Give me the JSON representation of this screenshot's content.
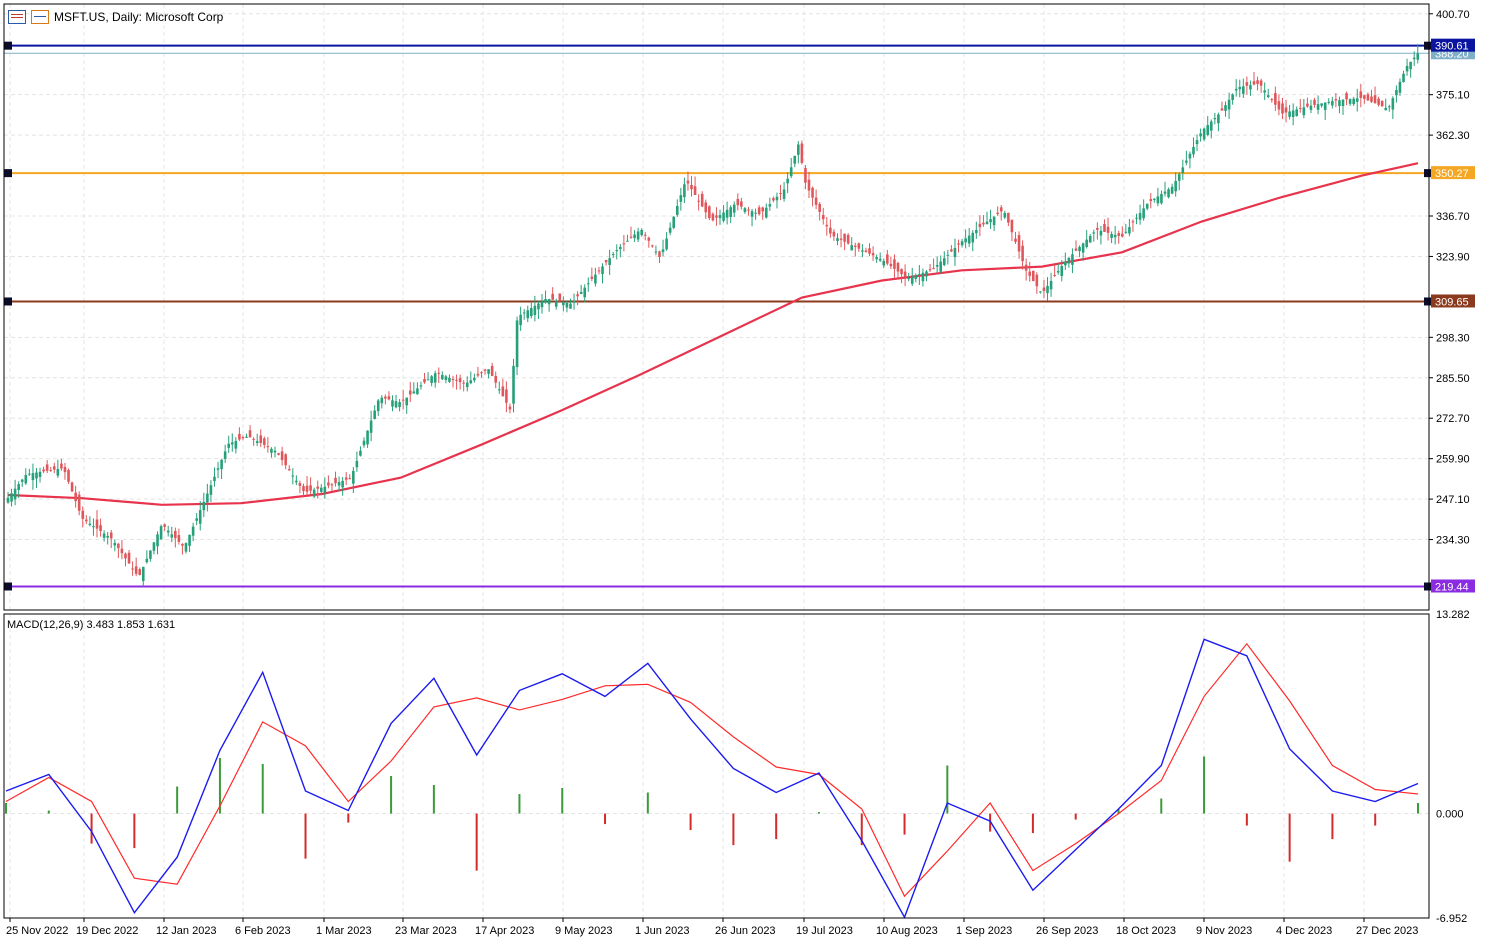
{
  "header": {
    "title": "MSFT.US, Daily:  Microsoft Corp"
  },
  "indicator": {
    "label": "MACD(12,26,9) 3.483 1.853 1.631"
  },
  "colors": {
    "bull": "#26a07a",
    "bear": "#e0575b",
    "ma": "#e8334d",
    "macd": "#1b1bf0",
    "signal": "#ff2a2a",
    "hist_pos": "#3a9b3a",
    "hist_neg": "#d42a2a",
    "axis_text": "#000000",
    "grid": "#e4e4e4"
  },
  "chart_data": [
    {
      "type": "candlestick",
      "symbol": "MSFT.US",
      "timeframe": "Daily",
      "y_ticks": [
        400.7,
        375.1,
        362.3,
        336.7,
        323.9,
        298.3,
        285.5,
        272.7,
        259.9,
        247.1,
        234.3
      ],
      "ylim": [
        212.0,
        403.8
      ],
      "x_labels": [
        "25 Nov 2022",
        "19 Dec 2022",
        "12 Jan 2023",
        "6 Feb 2023",
        "1 Mar 2023",
        "23 Mar 2023",
        "17 Apr 2023",
        "9 May 2023",
        "1 Jun 2023",
        "26 Jun 2023",
        "19 Jul 2023",
        "10 Aug 2023",
        "1 Sep 2023",
        "26 Sep 2023",
        "18 Oct 2023",
        "9 Nov 2023",
        "4 Dec 2023",
        "27 Dec 2023"
      ],
      "horizontal_levels": [
        {
          "value": 390.61,
          "label": "390.61",
          "color": "#0a14a0"
        },
        {
          "value": 350.27,
          "label": "350.27",
          "color": "#f5a623"
        },
        {
          "value": 309.65,
          "label": "309.65",
          "color": "#8b3a1e"
        },
        {
          "value": 219.44,
          "label": "219.44",
          "color": "#8b2be2"
        }
      ],
      "last_price": {
        "value": 388.2,
        "label": "388.20"
      },
      "close_path": [
        {
          "d": "25 Nov 2022",
          "c": 247.5
        },
        {
          "d": "1 Dec 2022",
          "c": 255.0
        },
        {
          "d": "13 Dec 2022",
          "c": 256.9
        },
        {
          "d": "19 Dec 2022",
          "c": 241.0
        },
        {
          "d": "28 Dec 2022",
          "c": 234.5
        },
        {
          "d": "5 Jan 2023",
          "c": 222.3
        },
        {
          "d": "12 Jan 2023",
          "c": 239.2
        },
        {
          "d": "19 Jan 2023",
          "c": 231.8
        },
        {
          "d": "26 Jan 2023",
          "c": 248.0
        },
        {
          "d": "2 Feb 2023",
          "c": 264.6
        },
        {
          "d": "8 Feb 2023",
          "c": 267.0
        },
        {
          "d": "16 Feb 2023",
          "c": 262.2
        },
        {
          "d": "24 Feb 2023",
          "c": 249.2
        },
        {
          "d": "2 Mar 2023",
          "c": 251.1
        },
        {
          "d": "9 Mar 2023",
          "c": 253.7
        },
        {
          "d": "17 Mar 2023",
          "c": 279.4
        },
        {
          "d": "23 Mar 2023",
          "c": 277.7
        },
        {
          "d": "3 Apr 2023",
          "c": 287.2
        },
        {
          "d": "12 Apr 2023",
          "c": 283.5
        },
        {
          "d": "19 Apr 2023",
          "c": 288.4
        },
        {
          "d": "25 Apr 2023",
          "c": 275.4
        },
        {
          "d": "27 Apr 2023",
          "c": 304.8
        },
        {
          "d": "5 May 2023",
          "c": 310.6
        },
        {
          "d": "12 May 2023",
          "c": 308.9
        },
        {
          "d": "19 May 2023",
          "c": 318.3
        },
        {
          "d": "25 May 2023",
          "c": 325.9
        },
        {
          "d": "1 Jun 2023",
          "c": 332.6
        },
        {
          "d": "7 Jun 2023",
          "c": 323.4
        },
        {
          "d": "15 Jun 2023",
          "c": 348.1
        },
        {
          "d": "23 Jun 2023",
          "c": 335.0
        },
        {
          "d": "30 Jun 2023",
          "c": 340.5
        },
        {
          "d": "7 Jul 2023",
          "c": 337.2
        },
        {
          "d": "14 Jul 2023",
          "c": 345.2
        },
        {
          "d": "18 Jul 2023",
          "c": 359.5
        },
        {
          "d": "20 Jul 2023",
          "c": 346.9
        },
        {
          "d": "27 Jul 2023",
          "c": 330.7
        },
        {
          "d": "3 Aug 2023",
          "c": 326.7
        },
        {
          "d": "10 Aug 2023",
          "c": 322.9
        },
        {
          "d": "17 Aug 2023",
          "c": 316.9
        },
        {
          "d": "24 Aug 2023",
          "c": 319.9
        },
        {
          "d": "1 Sep 2023",
          "c": 328.7
        },
        {
          "d": "8 Sep 2023",
          "c": 334.3
        },
        {
          "d": "14 Sep 2023",
          "c": 338.7
        },
        {
          "d": "21 Sep 2023",
          "c": 319.5
        },
        {
          "d": "26 Sep 2023",
          "c": 312.1
        },
        {
          "d": "2 Oct 2023",
          "c": 321.8
        },
        {
          "d": "11 Oct 2023",
          "c": 332.4
        },
        {
          "d": "18 Oct 2023",
          "c": 330.1
        },
        {
          "d": "25 Oct 2023",
          "c": 340.7
        },
        {
          "d": "1 Nov 2023",
          "c": 346.1
        },
        {
          "d": "9 Nov 2023",
          "c": 363.7
        },
        {
          "d": "15 Nov 2023",
          "c": 369.7
        },
        {
          "d": "20 Nov 2023",
          "c": 377.4
        },
        {
          "d": "27 Nov 2023",
          "c": 378.6
        },
        {
          "d": "4 Dec 2023",
          "c": 369.1
        },
        {
          "d": "11 Dec 2023",
          "c": 371.3
        },
        {
          "d": "19 Dec 2023",
          "c": 373.2
        },
        {
          "d": "27 Dec 2023",
          "c": 374.1
        },
        {
          "d": "3 Jan 2024",
          "c": 370.6
        },
        {
          "d": "8 Jan 2024",
          "c": 384.1
        },
        {
          "d": "11 Jan 2024",
          "c": 388.2
        }
      ],
      "moving_average": [
        {
          "d": "25 Nov 2022",
          "v": 248.4
        },
        {
          "d": "19 Dec 2022",
          "v": 247.4
        },
        {
          "d": "12 Jan 2023",
          "v": 245.3
        },
        {
          "d": "6 Feb 2023",
          "v": 245.8
        },
        {
          "d": "1 Mar 2023",
          "v": 248.7
        },
        {
          "d": "23 Mar 2023",
          "v": 253.9
        },
        {
          "d": "17 Apr 2023",
          "v": 264.3
        },
        {
          "d": "9 May 2023",
          "v": 275.1
        },
        {
          "d": "1 Jun 2023",
          "v": 286.6
        },
        {
          "d": "26 Jun 2023",
          "v": 298.7
        },
        {
          "d": "19 Jul 2023",
          "v": 310.9
        },
        {
          "d": "10 Aug 2023",
          "v": 316.3
        },
        {
          "d": "1 Sep 2023",
          "v": 319.5
        },
        {
          "d": "26 Sep 2023",
          "v": 320.7
        },
        {
          "d": "18 Oct 2023",
          "v": 325.2
        },
        {
          "d": "9 Nov 2023",
          "v": 335.0
        },
        {
          "d": "4 Dec 2023",
          "v": 342.7
        },
        {
          "d": "27 Dec 2023",
          "v": 349.5
        },
        {
          "d": "11 Jan 2024",
          "v": 353.4
        }
      ]
    },
    {
      "type": "line",
      "name": "MACD(12,26,9)",
      "y_ticks": [
        13.282,
        0.0,
        -6.952
      ],
      "ylim": [
        -6.952,
        13.282
      ],
      "x_labels_shared": true,
      "series": [
        {
          "name": "MACD",
          "values": [
            1.5,
            2.6,
            -1.2,
            -6.6,
            -2.9,
            4.2,
            9.4,
            1.5,
            0.2,
            6.0,
            9.0,
            3.9,
            8.2,
            9.3,
            7.8,
            10.0,
            6.3,
            3.0,
            1.4,
            2.7,
            -1.8,
            -6.9,
            0.7,
            -0.5,
            -5.1,
            -2.4,
            0.3,
            3.2,
            11.6,
            10.5,
            4.3,
            1.5,
            0.8,
            2.0
          ]
        },
        {
          "name": "Signal",
          "values": [
            0.8,
            2.4,
            0.8,
            -4.3,
            -4.7,
            0.5,
            6.1,
            4.5,
            0.8,
            3.5,
            7.1,
            7.7,
            6.9,
            7.6,
            8.5,
            8.6,
            7.4,
            5.1,
            3.1,
            2.6,
            0.3,
            -5.5,
            -2.5,
            0.7,
            -3.8,
            -2.0,
            0.0,
            2.2,
            7.8,
            11.3,
            7.5,
            3.2,
            1.6,
            1.3
          ]
        },
        {
          "name": "Histogram",
          "values": [
            0.7,
            0.2,
            -2.0,
            -2.3,
            1.8,
            3.7,
            3.3,
            -3.0,
            -0.6,
            2.5,
            1.9,
            -3.8,
            1.3,
            1.7,
            -0.7,
            1.4,
            -1.1,
            -2.1,
            -1.7,
            0.1,
            -2.1,
            -1.4,
            3.2,
            -1.2,
            -1.3,
            -0.4,
            0.3,
            1.0,
            3.8,
            -0.8,
            -3.2,
            -1.7,
            -0.8,
            0.7
          ]
        }
      ]
    }
  ]
}
